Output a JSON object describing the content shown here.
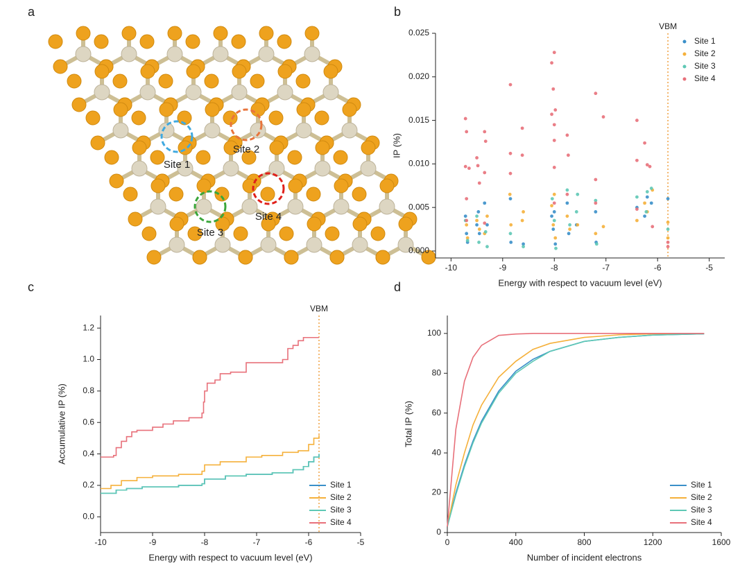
{
  "panel_labels": [
    "a",
    "b",
    "c",
    "d"
  ],
  "structure": {
    "site_labels": [
      "Site 1",
      "Site 2",
      "Site 3",
      "Site 4"
    ],
    "site_colors": [
      "#3fa9e0",
      "#e8743c",
      "#3aa63a",
      "#e0201a"
    ]
  },
  "chart_data": [
    {
      "type": "scatter",
      "xlabel": "Energy with respect to vacuum level (eV)",
      "ylabel": "IP (%)",
      "xlim": [
        -10.3,
        -4.7
      ],
      "xticks": [
        -10,
        -9,
        -8,
        -7,
        -6,
        -5
      ],
      "ylim": [
        -0.0008,
        0.025
      ],
      "yticks": [
        {
          "value": 0,
          "label": "0.000"
        },
        {
          "value": 0.005,
          "label": "0.005"
        },
        {
          "value": 0.01,
          "label": "0.010"
        },
        {
          "value": 0.015,
          "label": "0.015"
        },
        {
          "value": 0.02,
          "label": "0.020"
        },
        {
          "value": 0.025,
          "label": "0.025"
        }
      ],
      "legend": "upper right",
      "vbm": {
        "x": -5.8,
        "label": "VBM",
        "color": "#f0a040"
      },
      "series": [
        {
          "name": "Site 1",
          "color": "#3a8fc9",
          "x": [
            -9.72,
            -9.7,
            -9.68,
            -9.5,
            -9.47,
            -9.45,
            -9.35,
            -9.3,
            -8.85,
            -8.84,
            -8.6,
            -8.05,
            -8.02,
            -8.0,
            -7.98,
            -7.75,
            -7.72,
            -7.57,
            -7.2,
            -7.19,
            -6.4,
            -6.25,
            -6.2,
            -6.12,
            -5.8
          ],
          "values": [
            0.004,
            0.002,
            0.001,
            0.003,
            0.0045,
            0.002,
            0.0055,
            0.003,
            0.006,
            0.001,
            0.0008,
            0.004,
            0.0025,
            0.0045,
            0.0008,
            0.0055,
            0.002,
            0.003,
            0.0045,
            0.001,
            0.005,
            0.004,
            0.0062,
            0.0055,
            0.006
          ]
        },
        {
          "name": "Site 2",
          "color": "#f5b03a",
          "x": [
            -9.7,
            -9.68,
            -9.5,
            -9.45,
            -9.35,
            -9.3,
            -8.86,
            -8.84,
            -8.62,
            -8.6,
            -8.05,
            -8.02,
            -8.0,
            -7.98,
            -7.75,
            -7.7,
            -7.55,
            -7.2,
            -7.05,
            -6.4,
            -6.25,
            -6.2,
            -6.1,
            -5.8,
            -5.8
          ],
          "values": [
            0.003,
            0.0015,
            0.0035,
            0.0025,
            0.002,
            0.004,
            0.0065,
            0.003,
            0.0035,
            0.0045,
            0.0052,
            0.003,
            0.0065,
            0.0015,
            0.004,
            0.0025,
            0.003,
            0.002,
            0.0028,
            0.0035,
            0.0055,
            0.0045,
            0.007,
            0.0033,
            0.0015
          ]
        },
        {
          "name": "Site 3",
          "color": "#5ec8b5",
          "x": [
            -9.72,
            -9.68,
            -9.5,
            -9.46,
            -9.33,
            -9.3,
            -8.85,
            -8.6,
            -8.04,
            -8.0,
            -7.97,
            -7.75,
            -7.7,
            -7.57,
            -7.55,
            -7.2,
            -7.18,
            -6.4,
            -6.22,
            -6.2,
            -6.12,
            -5.8
          ],
          "values": [
            0.0035,
            0.0012,
            0.004,
            0.001,
            0.0022,
            0.0005,
            0.002,
            0.0005,
            0.006,
            0.0035,
            0.0003,
            0.007,
            0.003,
            0.0045,
            0.0065,
            0.0058,
            0.0008,
            0.0062,
            0.0045,
            0.0068,
            0.0072,
            0.0025
          ]
        },
        {
          "name": "Site 4",
          "color": "#e8707a",
          "x": [
            -9.72,
            -9.7,
            -9.72,
            -9.65,
            -9.7,
            -9.5,
            -9.48,
            -9.45,
            -9.35,
            -9.33,
            -9.35,
            -8.85,
            -8.85,
            -8.85,
            -8.62,
            -8.62,
            -8.05,
            -8.0,
            -8.02,
            -8.05,
            -7.98,
            -8.0,
            -8.0,
            -8.0,
            -7.75,
            -7.73,
            -7.2,
            -7.2,
            -7.05,
            -6.4,
            -6.4,
            -6.25,
            -6.2,
            -6.15,
            -5.8,
            -5.8,
            -9.7,
            -9.35,
            -8.0,
            -7.2,
            -6.4,
            -6.1,
            -7.75
          ],
          "values": [
            0.0152,
            0.0137,
            0.0097,
            0.0095,
            0.006,
            0.0107,
            0.0098,
            0.0078,
            0.0137,
            0.0126,
            0.009,
            0.0191,
            0.0112,
            0.0089,
            0.0141,
            0.011,
            0.0216,
            0.0228,
            0.0186,
            0.0157,
            0.0162,
            0.0145,
            0.0127,
            0.0096,
            0.0133,
            0.011,
            0.0181,
            0.0082,
            0.0154,
            0.015,
            0.0104,
            0.0124,
            0.0099,
            0.0097,
            0.001,
            0.0005,
            0.0035,
            0.0032,
            0.0055,
            0.0055,
            0.0048,
            0.0028,
            0.0065
          ]
        }
      ]
    },
    {
      "type": "line",
      "step": true,
      "xlabel": "Energy with respect to vacuum level (eV)",
      "ylabel": "Accumulative IP (%)",
      "xlim": [
        -10,
        -5
      ],
      "xticks": [
        -10,
        -9,
        -8,
        -7,
        -6,
        -5
      ],
      "ylim": [
        -0.1,
        1.28
      ],
      "yticks": [
        {
          "value": 0,
          "label": "0.0"
        },
        0.2,
        0.4,
        0.6,
        0.8,
        {
          "value": 1,
          "label": "1.0"
        },
        1.2
      ],
      "legend": "lower right",
      "vbm": {
        "x": -5.8,
        "label": "VBM",
        "color": "#f0a040"
      },
      "series": [
        {
          "name": "Site 1",
          "color": "#3a8fc9",
          "x": [
            -10,
            -9.7,
            -9.5,
            -9.2,
            -8.5,
            -8.05,
            -8,
            -7.6,
            -7.2,
            -6.7,
            -6.3,
            -6.1,
            -6,
            -5.9,
            -5.8
          ],
          "values": [
            0.15,
            0.17,
            0.18,
            0.19,
            0.2,
            0.21,
            0.24,
            0.26,
            0.27,
            0.28,
            0.3,
            0.32,
            0.35,
            0.38,
            0.4
          ]
        },
        {
          "name": "Site 2",
          "color": "#f5b03a",
          "x": [
            -10,
            -9.8,
            -9.6,
            -9.3,
            -9,
            -8.5,
            -8.05,
            -8,
            -7.7,
            -7.2,
            -6.9,
            -6.5,
            -6.2,
            -6,
            -5.9,
            -5.8
          ],
          "values": [
            0.18,
            0.2,
            0.23,
            0.25,
            0.26,
            0.27,
            0.29,
            0.33,
            0.35,
            0.38,
            0.39,
            0.41,
            0.42,
            0.46,
            0.5,
            0.52
          ]
        },
        {
          "name": "Site 3",
          "color": "#5ec8b5",
          "x": [
            -10,
            -9.7,
            -9.5,
            -9.2,
            -8.5,
            -8.05,
            -8,
            -7.6,
            -7.2,
            -6.7,
            -6.3,
            -6.1,
            -6,
            -5.9,
            -5.8
          ],
          "values": [
            0.15,
            0.17,
            0.18,
            0.19,
            0.2,
            0.21,
            0.24,
            0.26,
            0.27,
            0.28,
            0.3,
            0.32,
            0.35,
            0.38,
            0.4
          ]
        },
        {
          "name": "Site 4",
          "color": "#e8707a",
          "x": [
            -10,
            -9.75,
            -9.7,
            -9.6,
            -9.5,
            -9.4,
            -9.3,
            -9,
            -8.8,
            -8.6,
            -8.3,
            -8.05,
            -8.02,
            -8,
            -7.95,
            -7.8,
            -7.7,
            -7.5,
            -7.2,
            -6.5,
            -6.4,
            -6.3,
            -6.2,
            -6.1,
            -5.8
          ],
          "values": [
            0.38,
            0.39,
            0.44,
            0.48,
            0.51,
            0.54,
            0.55,
            0.57,
            0.59,
            0.61,
            0.63,
            0.66,
            0.73,
            0.8,
            0.85,
            0.87,
            0.91,
            0.92,
            0.98,
            1.0,
            1.07,
            1.09,
            1.12,
            1.14,
            1.14
          ]
        }
      ]
    },
    {
      "type": "line",
      "xlabel": "Number of incident electrons",
      "ylabel": "Total IP (%)",
      "xlim": [
        0,
        1600
      ],
      "xticks": [
        0,
        400,
        800,
        1200,
        1600
      ],
      "ylim": [
        0,
        109
      ],
      "yticks": [
        0,
        20,
        40,
        60,
        80,
        100
      ],
      "legend": "lower right",
      "x": [
        0,
        50,
        100,
        150,
        200,
        300,
        400,
        500,
        600,
        800,
        1000,
        1200,
        1500
      ],
      "series": [
        {
          "name": "Site 1",
          "color": "#3a8fc9",
          "values": [
            3,
            20,
            34,
            46,
            56,
            71,
            81,
            87,
            91,
            96,
            98,
            99.2,
            99.8
          ]
        },
        {
          "name": "Site 2",
          "color": "#f5b03a",
          "values": [
            3,
            24,
            40,
            54,
            64,
            78,
            86,
            92,
            95,
            98,
            99.3,
            99.8,
            100
          ]
        },
        {
          "name": "Site 3",
          "color": "#5ec8b5",
          "values": [
            3,
            19,
            33,
            45,
            55,
            70,
            80,
            86,
            91,
            96,
            98,
            99.2,
            99.8
          ]
        },
        {
          "name": "Site 4",
          "color": "#e8707a",
          "values": [
            3,
            52,
            76,
            88,
            94,
            99,
            99.7,
            100,
            100,
            100,
            100,
            100,
            100
          ]
        }
      ]
    }
  ]
}
